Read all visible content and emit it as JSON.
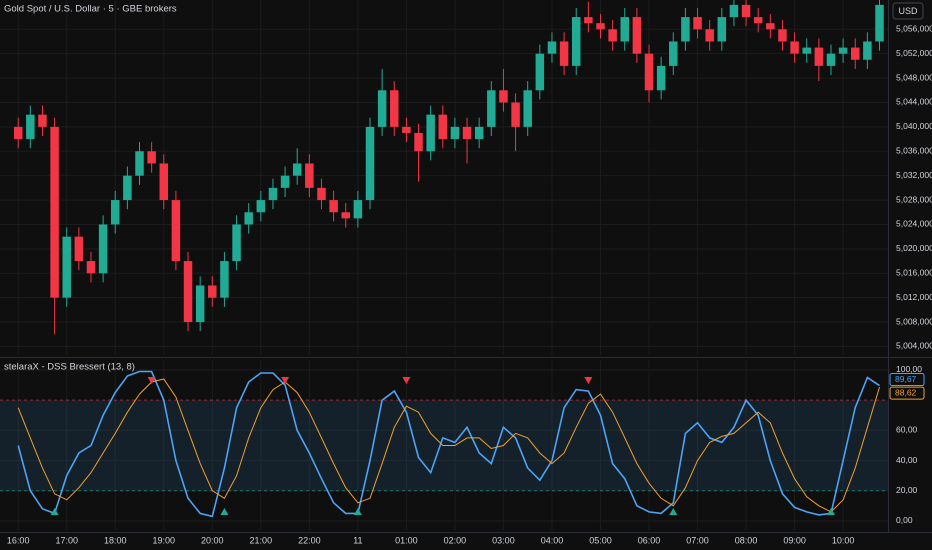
{
  "chart_data": [
    {
      "type": "candlestick",
      "title": "Gold Spot / U.S. Dollar · 5 · GBE brokers",
      "currency": "USD",
      "up_color": "#22ab94",
      "down_color": "#f23645",
      "open": [
        5040,
        5038,
        5042,
        5040,
        5012,
        5022,
        5018,
        5016,
        5024,
        5028,
        5032,
        5036,
        5034,
        5028,
        5018,
        5008,
        5014,
        5012,
        5018,
        5024,
        5026,
        5028,
        5030,
        5032,
        5034,
        5030,
        5028,
        5026,
        5025,
        5028,
        5040,
        5046,
        5040,
        5039,
        5036,
        5042,
        5038,
        5040,
        5038,
        5040,
        5046,
        5044,
        5040,
        5046,
        5052,
        5054,
        5050,
        5058,
        5057,
        5056,
        5054,
        5058,
        5052,
        5046,
        5050,
        5054,
        5058,
        5056,
        5054,
        5058,
        5060,
        5058,
        5057,
        5056,
        5054,
        5052,
        5053,
        5050,
        5052,
        5053,
        5051,
        5054
      ],
      "high": [
        5041.5,
        5043.5,
        5043.5,
        5041.5,
        5023.5,
        5023.5,
        5019.5,
        5025.5,
        5029.5,
        5033.5,
        5037.5,
        5037.5,
        5035.5,
        5029.5,
        5019.5,
        5015.5,
        5015.5,
        5019.5,
        5025.5,
        5027.5,
        5029.5,
        5031.5,
        5033.5,
        5036.5,
        5035.5,
        5031.5,
        5029.5,
        5027.5,
        5029.5,
        5041.5,
        5049.5,
        5047.5,
        5041.5,
        5040.5,
        5043.5,
        5043.5,
        5041.5,
        5041.5,
        5041.5,
        5047.5,
        5049.5,
        5045.5,
        5047.5,
        5053.5,
        5055.5,
        5055.5,
        5059.5,
        5060.5,
        5058.5,
        5057.5,
        5059.5,
        5059.5,
        5053.5,
        5051.5,
        5055.5,
        5059.5,
        5059.5,
        5057.5,
        5059.5,
        5061.5,
        5061.5,
        5059.5,
        5058.5,
        5057.5,
        5055.5,
        5054.5,
        5054.5,
        5053.5,
        5054.5,
        5054.5,
        5055.5,
        5061.5
      ],
      "low": [
        5036.5,
        5036.5,
        5038.5,
        5006,
        5010.5,
        5016.5,
        5014.5,
        5014.5,
        5022.5,
        5026.5,
        5030.5,
        5032.5,
        5026.5,
        5016.5,
        5006.5,
        5006.5,
        5010.5,
        5010.5,
        5016.5,
        5022.5,
        5024.5,
        5026.5,
        5028.5,
        5030.5,
        5028.5,
        5026.5,
        5024.5,
        5023.5,
        5023.5,
        5026.5,
        5038.5,
        5038.5,
        5037.5,
        5031,
        5034.5,
        5036.5,
        5036.5,
        5034,
        5036.5,
        5038.5,
        5042.5,
        5036,
        5038.5,
        5044.5,
        5050.5,
        5048.5,
        5048.5,
        5055.5,
        5054.5,
        5052.5,
        5052.5,
        5050.5,
        5044,
        5044.5,
        5048.5,
        5052.5,
        5054.5,
        5052.5,
        5052.5,
        5056.5,
        5056.5,
        5055.5,
        5054.5,
        5052.5,
        5050.5,
        5050.5,
        5047.5,
        5048.5,
        5050.5,
        5049.5,
        5049.5,
        5052.5
      ],
      "close": [
        5038,
        5042,
        5040,
        5012,
        5022,
        5018,
        5016,
        5024,
        5028,
        5032,
        5036,
        5034,
        5028,
        5018,
        5008,
        5014,
        5012,
        5018,
        5024,
        5026,
        5028,
        5030,
        5032,
        5034,
        5030,
        5028,
        5026,
        5025,
        5028,
        5040,
        5046,
        5040,
        5039,
        5036,
        5042,
        5038,
        5040,
        5038,
        5040,
        5046,
        5044,
        5040,
        5046,
        5052,
        5054,
        5050,
        5058,
        5057,
        5056,
        5054,
        5058,
        5052,
        5046,
        5050,
        5054,
        5058,
        5056,
        5054,
        5058,
        5060,
        5058,
        5057,
        5056,
        5054,
        5052,
        5053,
        5050,
        5052,
        5053,
        5051,
        5054,
        5060
      ],
      "ylim": [
        5002.6,
        5060.8
      ],
      "yticks": [
        {
          "value": 5004,
          "label": "5,004,000"
        },
        {
          "value": 5008,
          "label": "5,008,000"
        },
        {
          "value": 5012,
          "label": "5,012,000"
        },
        {
          "value": 5016,
          "label": "5,016,000"
        },
        {
          "value": 5020,
          "label": "5,020,000"
        },
        {
          "value": 5024,
          "label": "5,024,000"
        },
        {
          "value": 5028,
          "label": "5,028,000"
        },
        {
          "value": 5032,
          "label": "5,032,000"
        },
        {
          "value": 5036,
          "label": "5,036,000"
        },
        {
          "value": 5040,
          "label": "5,040,000"
        },
        {
          "value": 5044,
          "label": "5,044,000"
        },
        {
          "value": 5048,
          "label": "5,048,000"
        },
        {
          "value": 5052,
          "label": "5,052,000"
        },
        {
          "value": 5056,
          "label": "5,056,000"
        }
      ],
      "grid": true
    },
    {
      "type": "line",
      "title": "stelaraX - DSS Bressert (13, 8)",
      "series": [
        {
          "color": "#4da3f5",
          "last_label": "89,67",
          "values": [
            50,
            20,
            8,
            5,
            30,
            45,
            50,
            70,
            85,
            96,
            99,
            99,
            80,
            40,
            15,
            5,
            3,
            35,
            75,
            92,
            98,
            98,
            90,
            60,
            45,
            28,
            12,
            5,
            5,
            40,
            80,
            86,
            72,
            42,
            32,
            55,
            52,
            62,
            45,
            38,
            62,
            55,
            35,
            27,
            40,
            75,
            87,
            86,
            70,
            38,
            28,
            10,
            6,
            5,
            12,
            58,
            65,
            55,
            52,
            62,
            80,
            70,
            40,
            18,
            9,
            6,
            4,
            5,
            40,
            75,
            95,
            89.67
          ]
        },
        {
          "color": "#f0a030",
          "last_label": "88,62",
          "values": [
            75,
            55,
            35,
            18,
            14,
            22,
            32,
            45,
            58,
            72,
            84,
            92,
            94,
            82,
            60,
            38,
            20,
            15,
            30,
            55,
            75,
            87,
            92,
            85,
            72,
            55,
            38,
            22,
            12,
            15,
            38,
            62,
            76,
            72,
            58,
            50,
            50,
            55,
            55,
            48,
            50,
            58,
            55,
            45,
            38,
            45,
            62,
            78,
            84,
            72,
            55,
            38,
            25,
            15,
            10,
            22,
            40,
            52,
            56,
            58,
            65,
            72,
            65,
            45,
            28,
            16,
            10,
            6,
            14,
            35,
            62,
            88.62
          ]
        }
      ],
      "levels": [
        {
          "value": 80,
          "color": "#f23645"
        },
        {
          "value": 20,
          "color": "#22ab94"
        }
      ],
      "band_color": "rgba(41,98,140,0.22)",
      "sell_signals": [
        11,
        22,
        32,
        47
      ],
      "buy_signals": [
        3,
        17,
        28,
        54,
        67
      ],
      "ylim": [
        -6,
        106.6
      ],
      "yticks": [
        {
          "value": 0,
          "label": "0,00"
        },
        {
          "value": 20,
          "label": "20,00"
        },
        {
          "value": 40,
          "label": "40,00"
        },
        {
          "value": 60,
          "label": "60,00"
        },
        {
          "value": 100,
          "label": "100,00"
        }
      ],
      "xlim": [
        -1.5,
        71.7
      ],
      "xticks": [
        {
          "value": 0,
          "label": "16:00"
        },
        {
          "value": 4,
          "label": "17:00"
        },
        {
          "value": 8,
          "label": "18:00"
        },
        {
          "value": 12,
          "label": "19:00"
        },
        {
          "value": 16,
          "label": "20:00"
        },
        {
          "value": 20,
          "label": "21:00"
        },
        {
          "value": 24,
          "label": "22:00"
        },
        {
          "value": 28,
          "label": "11"
        },
        {
          "value": 32,
          "label": "01:00"
        },
        {
          "value": 36,
          "label": "02:00"
        },
        {
          "value": 40,
          "label": "03:00"
        },
        {
          "value": 44,
          "label": "04:00"
        },
        {
          "value": 48,
          "label": "05:00"
        },
        {
          "value": 52,
          "label": "06:00"
        },
        {
          "value": 56,
          "label": "07:00"
        },
        {
          "value": 60,
          "label": "08:00"
        },
        {
          "value": 64,
          "label": "09:00"
        },
        {
          "value": 68,
          "label": "10:00"
        }
      ],
      "grid": true
    }
  ]
}
